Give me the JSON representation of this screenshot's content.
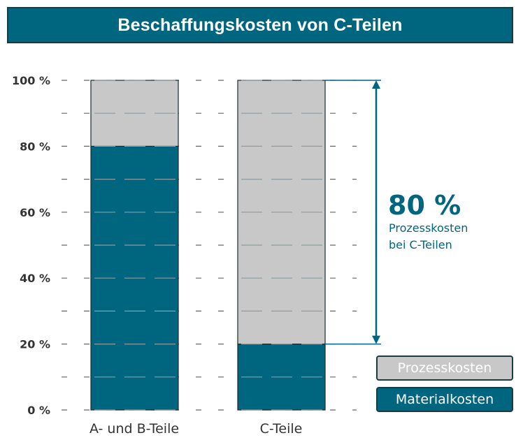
{
  "colors": {
    "accent": "#006680",
    "process": "#c8c8c8",
    "title_text": "#ffffff",
    "legend_prozess_text": "#ffffff",
    "legend_material_text": "#ffffff",
    "axis_text": "#333333",
    "dash": "#666666"
  },
  "chart_data": {
    "type": "bar",
    "stacked": true,
    "title": "Beschaffungskosten von C-Teilen",
    "categories": [
      "A- und B-Teile",
      "C-Teile"
    ],
    "series": [
      {
        "name": "Materialkosten",
        "values": [
          80,
          20
        ],
        "color": "#006680"
      },
      {
        "name": "Prozesskosten",
        "values": [
          20,
          80
        ],
        "color": "#c8c8c8"
      }
    ],
    "ylim": [
      0,
      100
    ],
    "yticks": [
      {
        "value": 0,
        "label": "0 %"
      },
      {
        "value": 20,
        "label": "20 %"
      },
      {
        "value": 40,
        "label": "40 %"
      },
      {
        "value": 60,
        "label": "60 %"
      },
      {
        "value": 80,
        "label": "80 %"
      },
      {
        "value": 100,
        "label": "100 %"
      }
    ],
    "minor_ticks": [
      10,
      30,
      50,
      70,
      90
    ],
    "grid": "dashed",
    "legend_position": "bottom-right",
    "annotation": {
      "value": "80 %",
      "line1": "Prozesskosten",
      "line2": "bei C-Teilen",
      "from": 20,
      "to": 100
    }
  }
}
